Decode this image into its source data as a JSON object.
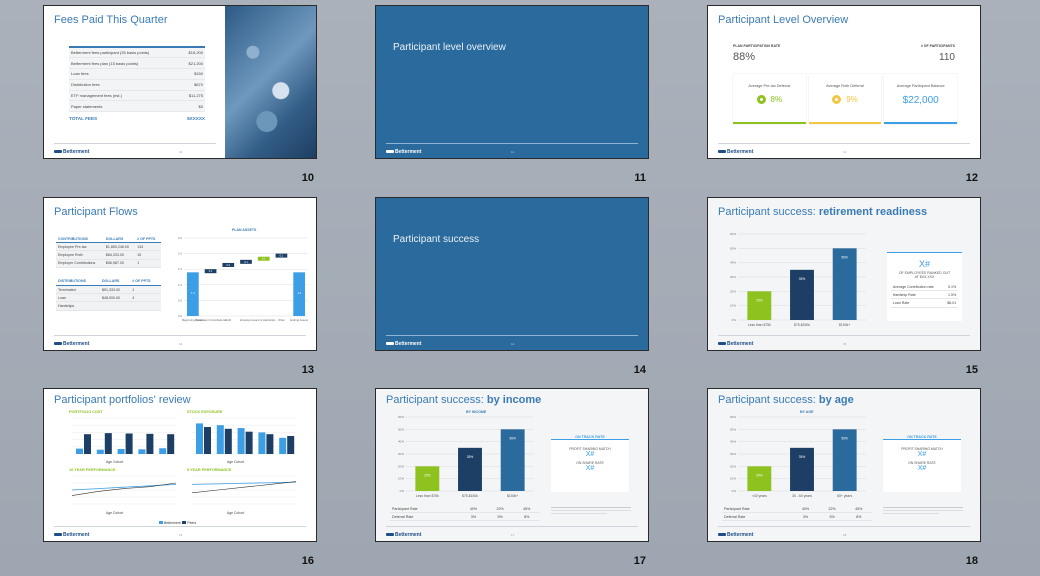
{
  "brand": {
    "name": "Betterment",
    "sub": "FOR BUSINESS"
  },
  "slides": [
    {
      "number": "10",
      "title": "Fees Paid This Quarter",
      "fees": [
        {
          "label": "Betterment fees participant (35 basis points)",
          "value": "$15,200"
        },
        {
          "label": "Betterment fees plan (15 basis points)",
          "value": "$21,200"
        },
        {
          "label": "Loan fees",
          "value": "$150"
        },
        {
          "label": "Distribution fees",
          "value": "$670"
        },
        {
          "label": "ETF management fees (est.)",
          "value": "$11,275"
        },
        {
          "label": "Paper statements",
          "value": "$0"
        }
      ],
      "total_label": "TOTAL FEES",
      "total_value": "$XXXXX",
      "page": "10"
    },
    {
      "number": "11",
      "title": "Participant level overview",
      "page": "11"
    },
    {
      "number": "12",
      "title": "Participant Level Overview",
      "participation_label": "PLAN PARTICIPATION RATE",
      "participation_value": "88%",
      "count_label": "# OF PARTICIPANTS",
      "count_value": "110",
      "cards": [
        {
          "label": "Average Pre-tax Deferral",
          "value": "8%",
          "color": "#8dc21f"
        },
        {
          "label": "Average Roth Deferral",
          "value": "9%",
          "color": "#f2c744"
        },
        {
          "label": "Average Participant Balance",
          "value": "$22,000",
          "color": "#3c9ee5"
        }
      ],
      "page": "12"
    },
    {
      "number": "13",
      "title": "Participant Flows",
      "contrib_header": [
        "CONTRIBUTIONS",
        "DOLLARS",
        "# OF PPTS"
      ],
      "contrib_rows": [
        [
          "Employee Pre-tax",
          "$1,850,246.00",
          "134"
        ],
        [
          "Employee Roth",
          "$84,333.00",
          "15"
        ],
        [
          "Employer Contributions",
          "$56,987.00",
          "1"
        ]
      ],
      "dist_header": [
        "DISTRIBUTIONS",
        "DOLLARS",
        "# OF PPTS"
      ],
      "dist_rows": [
        [
          "Terminated",
          "$51,333.00",
          "1"
        ],
        [
          "Loan",
          "$48,000.00",
          "4"
        ],
        [
          "Hardships",
          "",
          ""
        ]
      ],
      "chart_data": {
        "type": "bar",
        "title": "PLAN ASSETS",
        "categories": [
          "Beginning Assets",
          "Participant Contributions",
          "Roth",
          "Employer",
          "Loans & Hardships",
          "Other",
          "Ending Assets"
        ],
        "values": [
          1.4,
          0.1,
          0.2,
          0.1,
          0.1,
          0.1,
          1.4
        ],
        "ylim": [
          0,
          2.5
        ]
      },
      "page": "13"
    },
    {
      "number": "14",
      "title": "Participant success",
      "page": "14"
    },
    {
      "number": "15",
      "title_plain": "Participant success: ",
      "title_bold": "retirement readiness",
      "chart_data": {
        "type": "bar",
        "categories": [
          "Less than $75k",
          "$75-$150k",
          "$150k+"
        ],
        "values": [
          20,
          35,
          50
        ],
        "data_labels": [
          "20%",
          "35%",
          "50%"
        ],
        "ylim": [
          0,
          60
        ]
      },
      "stat_value": "X#",
      "stat_label": "OF EMPLOYEES RANKED OUT AT $XX,XXX",
      "stat_rows": [
        [
          "Average Contribution rate",
          "5.1%"
        ],
        [
          "Hardship Rate",
          "1.5%"
        ],
        [
          "Loan Rate",
          "$6.01"
        ]
      ],
      "page": "15"
    },
    {
      "number": "16",
      "title": "Participant portfolios' review",
      "sub1": "PORTFOLIO COST",
      "sub2": "STOCK EXPOSURE",
      "sub3": "10 YEAR PERFORMANCE",
      "sub4": "5 YEAR PERFORMANCE",
      "axis_label": "Age Cohort",
      "legend": [
        "Betterment",
        "Peers"
      ],
      "page": "16"
    },
    {
      "number": "17",
      "title_plain": "Participant success: ",
      "title_bold": "by income",
      "chart_title": "BY INCOME",
      "chart_data": {
        "type": "bar",
        "categories": [
          "Less than $75k",
          "$75-$150k",
          "$150k+"
        ],
        "values": [
          20,
          35,
          50
        ],
        "data_labels": [
          "20%",
          "35%",
          "50%"
        ],
        "ylim": [
          0,
          60
        ]
      },
      "track_title": "ON TRACK RATE",
      "track_line1": "PROFIT SHARING MATCH",
      "track_val1": "X#",
      "track_line2": "ON SHARE RATE",
      "track_val2": "X#",
      "rows": [
        [
          "Participant Rate",
          "40%",
          "22%",
          "45%"
        ],
        [
          "Deferral Rate",
          "3%",
          "5%",
          "8%"
        ]
      ],
      "page": "17"
    },
    {
      "number": "18",
      "title_plain": "Participant success: ",
      "title_bold": "by age",
      "chart_title": "BY AGE",
      "chart_data": {
        "type": "bar",
        "categories": [
          "<30 years",
          "30 - 60 years",
          "60+ years"
        ],
        "values": [
          20,
          35,
          50
        ],
        "data_labels": [
          "20%",
          "35%",
          "50%"
        ],
        "ylim": [
          0,
          60
        ]
      },
      "track_title": "ON TRACK RATE",
      "track_line1": "PROFIT SHARING MATCH",
      "track_val1": "X#",
      "track_line2": "ON SHARE RATE",
      "track_val2": "X#",
      "rows": [
        [
          "Participant Rate",
          "40%",
          "22%",
          "45%"
        ],
        [
          "Deferral Rate",
          "3%",
          "5%",
          "8%"
        ]
      ],
      "page": "18"
    }
  ],
  "colors": {
    "green": "#8dc21f",
    "navy": "#1d3f66",
    "blue": "#2b6a9c",
    "lightblue": "#3c9ee5",
    "accent": "#3a7bb5"
  }
}
